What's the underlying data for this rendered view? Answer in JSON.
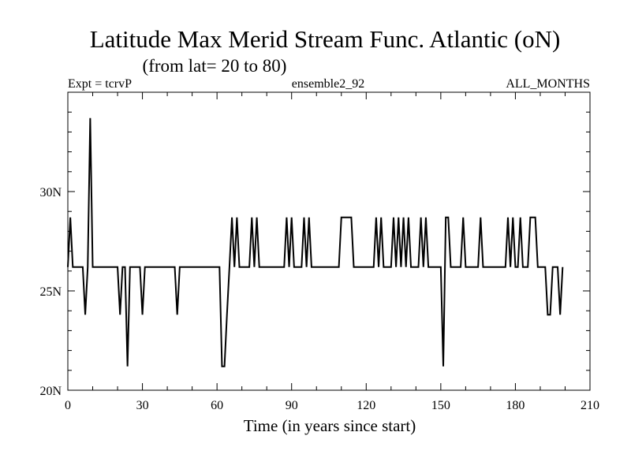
{
  "chart_data": {
    "type": "line",
    "title": "Latitude Max Merid Stream Func. Atlantic (oN)",
    "subtitle": "(from lat= 20 to 80)",
    "expt_label": "Expt = tcrvP",
    "ensemble_label": "ensemble2_92",
    "months_label": "ALL_MONTHS",
    "xlabel": "Time (in years since start)",
    "ylabel": "",
    "xlim": [
      0,
      210
    ],
    "ylim": [
      20,
      35
    ],
    "x_ticks": [
      0,
      30,
      60,
      90,
      120,
      150,
      180,
      210
    ],
    "y_ticks": [
      20,
      25,
      30
    ],
    "y_tick_labels": [
      "20N",
      "25N",
      "30N"
    ],
    "grid": false,
    "series": [
      {
        "values": [
          [
            0,
            26.2
          ],
          [
            1,
            28.7
          ],
          [
            2,
            26.2
          ],
          [
            4,
            26.2
          ],
          [
            5,
            26.2
          ],
          [
            6,
            26.2
          ],
          [
            7,
            23.8
          ],
          [
            8,
            26.2
          ],
          [
            9,
            33.7
          ],
          [
            10,
            26.2
          ],
          [
            11,
            26.2
          ],
          [
            12,
            26.2
          ],
          [
            13,
            26.2
          ],
          [
            14,
            26.2
          ],
          [
            15,
            26.2
          ],
          [
            16,
            26.2
          ],
          [
            17,
            26.2
          ],
          [
            18,
            26.2
          ],
          [
            19,
            26.2
          ],
          [
            20,
            26.2
          ],
          [
            21,
            23.8
          ],
          [
            22,
            26.2
          ],
          [
            23,
            26.2
          ],
          [
            24,
            21.2
          ],
          [
            25,
            26.2
          ],
          [
            26,
            26.2
          ],
          [
            27,
            26.2
          ],
          [
            28,
            26.2
          ],
          [
            29,
            26.2
          ],
          [
            30,
            23.8
          ],
          [
            31,
            26.2
          ],
          [
            32,
            26.2
          ],
          [
            33,
            26.2
          ],
          [
            34,
            26.2
          ],
          [
            35,
            26.2
          ],
          [
            36,
            26.2
          ],
          [
            37,
            26.2
          ],
          [
            38,
            26.2
          ],
          [
            39,
            26.2
          ],
          [
            40,
            26.2
          ],
          [
            41,
            26.2
          ],
          [
            42,
            26.2
          ],
          [
            43,
            26.2
          ],
          [
            44,
            23.8
          ],
          [
            45,
            26.2
          ],
          [
            46,
            26.2
          ],
          [
            47,
            26.2
          ],
          [
            48,
            26.2
          ],
          [
            49,
            26.2
          ],
          [
            50,
            26.2
          ],
          [
            51,
            26.2
          ],
          [
            52,
            26.2
          ],
          [
            53,
            26.2
          ],
          [
            54,
            26.2
          ],
          [
            55,
            26.2
          ],
          [
            56,
            26.2
          ],
          [
            57,
            26.2
          ],
          [
            58,
            26.2
          ],
          [
            59,
            26.2
          ],
          [
            60,
            26.2
          ],
          [
            61,
            26.2
          ],
          [
            62,
            21.2
          ],
          [
            63,
            21.2
          ],
          [
            64,
            23.8
          ],
          [
            65,
            26.2
          ],
          [
            66,
            28.7
          ],
          [
            67,
            26.2
          ],
          [
            68,
            28.7
          ],
          [
            69,
            26.2
          ],
          [
            70,
            26.2
          ],
          [
            71,
            26.2
          ],
          [
            72,
            26.2
          ],
          [
            73,
            26.2
          ],
          [
            74,
            28.7
          ],
          [
            75,
            26.2
          ],
          [
            76,
            28.7
          ],
          [
            77,
            26.2
          ],
          [
            78,
            26.2
          ],
          [
            79,
            26.2
          ],
          [
            80,
            26.2
          ],
          [
            81,
            26.2
          ],
          [
            82,
            26.2
          ],
          [
            83,
            26.2
          ],
          [
            84,
            26.2
          ],
          [
            85,
            26.2
          ],
          [
            86,
            26.2
          ],
          [
            87,
            26.2
          ],
          [
            88,
            28.7
          ],
          [
            89,
            26.2
          ],
          [
            90,
            28.7
          ],
          [
            91,
            26.2
          ],
          [
            92,
            26.2
          ],
          [
            93,
            26.2
          ],
          [
            94,
            26.2
          ],
          [
            95,
            28.7
          ],
          [
            96,
            26.2
          ],
          [
            97,
            28.7
          ],
          [
            98,
            26.2
          ],
          [
            99,
            26.2
          ],
          [
            100,
            26.2
          ],
          [
            101,
            26.2
          ],
          [
            102,
            26.2
          ],
          [
            103,
            26.2
          ],
          [
            104,
            26.2
          ],
          [
            105,
            26.2
          ],
          [
            106,
            26.2
          ],
          [
            107,
            26.2
          ],
          [
            108,
            26.2
          ],
          [
            109,
            26.2
          ],
          [
            110,
            28.7
          ],
          [
            111,
            28.7
          ],
          [
            112,
            28.7
          ],
          [
            113,
            28.7
          ],
          [
            114,
            28.7
          ],
          [
            115,
            26.2
          ],
          [
            116,
            26.2
          ],
          [
            117,
            26.2
          ],
          [
            118,
            26.2
          ],
          [
            119,
            26.2
          ],
          [
            120,
            26.2
          ],
          [
            121,
            26.2
          ],
          [
            122,
            26.2
          ],
          [
            123,
            26.2
          ],
          [
            124,
            28.7
          ],
          [
            125,
            26.2
          ],
          [
            126,
            28.7
          ],
          [
            127,
            26.2
          ],
          [
            128,
            26.2
          ],
          [
            129,
            26.2
          ],
          [
            130,
            26.2
          ],
          [
            131,
            28.7
          ],
          [
            132,
            26.2
          ],
          [
            133,
            28.7
          ],
          [
            134,
            26.2
          ],
          [
            135,
            28.7
          ],
          [
            136,
            26.2
          ],
          [
            137,
            28.7
          ],
          [
            138,
            26.2
          ],
          [
            139,
            26.2
          ],
          [
            140,
            26.2
          ],
          [
            141,
            26.2
          ],
          [
            142,
            28.7
          ],
          [
            143,
            26.2
          ],
          [
            144,
            28.7
          ],
          [
            145,
            26.2
          ],
          [
            146,
            26.2
          ],
          [
            147,
            26.2
          ],
          [
            148,
            26.2
          ],
          [
            149,
            26.2
          ],
          [
            150,
            26.2
          ],
          [
            151,
            21.2
          ],
          [
            152,
            28.7
          ],
          [
            153,
            28.7
          ],
          [
            154,
            26.2
          ],
          [
            155,
            26.2
          ],
          [
            156,
            26.2
          ],
          [
            157,
            26.2
          ],
          [
            158,
            26.2
          ],
          [
            159,
            28.7
          ],
          [
            160,
            26.2
          ],
          [
            161,
            26.2
          ],
          [
            162,
            26.2
          ],
          [
            163,
            26.2
          ],
          [
            164,
            26.2
          ],
          [
            165,
            26.2
          ],
          [
            166,
            28.7
          ],
          [
            167,
            26.2
          ],
          [
            168,
            26.2
          ],
          [
            169,
            26.2
          ],
          [
            170,
            26.2
          ],
          [
            171,
            26.2
          ],
          [
            172,
            26.2
          ],
          [
            173,
            26.2
          ],
          [
            174,
            26.2
          ],
          [
            175,
            26.2
          ],
          [
            176,
            26.2
          ],
          [
            177,
            28.7
          ],
          [
            178,
            26.2
          ],
          [
            179,
            28.7
          ],
          [
            180,
            26.2
          ],
          [
            181,
            26.2
          ],
          [
            182,
            28.7
          ],
          [
            183,
            26.2
          ],
          [
            184,
            26.2
          ],
          [
            185,
            26.2
          ],
          [
            186,
            28.7
          ],
          [
            187,
            28.7
          ],
          [
            188,
            28.7
          ],
          [
            189,
            26.2
          ],
          [
            190,
            26.2
          ],
          [
            191,
            26.2
          ],
          [
            192,
            26.2
          ],
          [
            193,
            23.8
          ],
          [
            194,
            23.8
          ],
          [
            195,
            26.2
          ],
          [
            196,
            26.2
          ],
          [
            197,
            26.2
          ],
          [
            198,
            23.8
          ],
          [
            199,
            26.2
          ]
        ]
      }
    ]
  }
}
